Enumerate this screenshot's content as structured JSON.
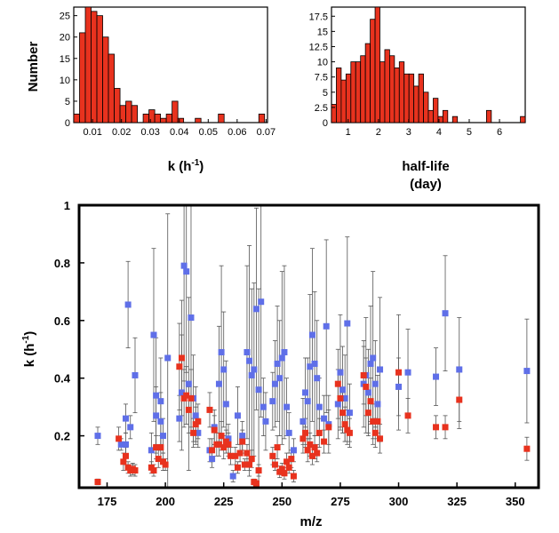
{
  "chart_data": [
    {
      "type": "bar",
      "xlabel": "k (h",
      "xlabel_sup": "-1",
      "xlabel_close": ")",
      "ylabel": "Number",
      "xlim": [
        0.0035,
        0.0705
      ],
      "ylim": [
        0,
        27
      ],
      "xticks": [
        0.01,
        0.02,
        0.03,
        0.04,
        0.05,
        0.06,
        0.07
      ],
      "xtick_labels": [
        "0.01",
        "0.02",
        "0.03",
        "0.04",
        "0.05",
        "0.06",
        "0.07"
      ],
      "yticks": [
        0,
        5,
        10,
        15,
        20,
        25
      ],
      "ytick_labels": [
        "0",
        "5",
        "10",
        "15",
        "20",
        "25"
      ],
      "bin_start": 0.0035,
      "bin_width": 0.002,
      "values": [
        2,
        21,
        27,
        26,
        25,
        20,
        16,
        8,
        4,
        5,
        4,
        0,
        2,
        3,
        2,
        1,
        2,
        5,
        1,
        0,
        0,
        1,
        0,
        0,
        0,
        2,
        0,
        0,
        0,
        0,
        0,
        0,
        2
      ]
    },
    {
      "type": "bar",
      "xlabel": "half-life",
      "xlabel_line2": "(day)",
      "xlim": [
        0.45,
        6.85
      ],
      "ylim": [
        0,
        19
      ],
      "xticks": [
        1,
        2,
        3,
        4,
        5,
        6
      ],
      "xtick_labels": [
        "1",
        "2",
        "3",
        "4",
        "5",
        "6"
      ],
      "yticks": [
        0,
        2.5,
        5,
        7.5,
        10,
        12.5,
        15,
        17.5
      ],
      "ytick_labels": [
        "0",
        "2.5",
        "5",
        "7.5",
        "10",
        "12.5",
        "15",
        "17.5"
      ],
      "bin_start": 0.45,
      "bin_width": 0.16,
      "values": [
        3,
        9,
        7,
        8,
        10,
        10,
        11,
        13,
        17,
        19,
        10,
        12,
        11,
        9,
        10,
        8,
        8,
        6,
        8,
        5,
        2,
        4,
        1,
        2,
        0,
        1,
        0,
        0,
        0,
        0,
        0,
        0,
        2,
        0,
        0,
        0,
        0,
        0,
        0,
        1
      ]
    },
    {
      "type": "scatter",
      "xlabel": "m/z",
      "ylabel": "k (h",
      "ylabel_sup": "-1",
      "ylabel_close": ")",
      "xlim": [
        163,
        360
      ],
      "ylim": [
        0.02,
        1.0
      ],
      "xticks": [
        175,
        200,
        225,
        250,
        275,
        300,
        325,
        350
      ],
      "xtick_labels": [
        "175",
        "200",
        "225",
        "250",
        "275",
        "300",
        "325",
        "350"
      ],
      "yticks": [
        0.2,
        0.4,
        0.6,
        0.8,
        1.0
      ],
      "ytick_labels": [
        "0.2",
        "0.4",
        "0.6",
        "0.8",
        "1"
      ],
      "series": [
        {
          "color": "#5f6fe8",
          "points": [
            [
              171,
              0.2,
              0.03
            ],
            [
              181,
              0.17,
              0.02
            ],
            [
              183,
              0.17,
              0.04
            ],
            [
              183,
              0.26,
              0.05
            ],
            [
              184,
              0.655,
              0.15
            ],
            [
              185,
              0.23,
              0.04
            ],
            [
              187,
              0.41,
              0.13
            ],
            [
              194,
              0.15,
              0.06
            ],
            [
              195,
              0.55,
              0.3
            ],
            [
              196,
              0.34,
              0.2
            ],
            [
              196,
              0.27,
              0.1
            ],
            [
              198,
              0.32,
              0.15
            ],
            [
              198,
              0.25,
              0.1
            ],
            [
              199,
              0.2,
              0.06
            ],
            [
              201,
              0.47,
              0.5
            ],
            [
              206,
              0.26,
              0.08
            ],
            [
              207,
              0.35,
              0.2
            ],
            [
              208,
              0.79,
              0.4
            ],
            [
              209,
              0.77,
              0.35
            ],
            [
              210,
              0.38,
              0.3
            ],
            [
              211,
              0.61,
              0.4
            ],
            [
              212,
              0.33,
              0.15
            ],
            [
              213,
              0.27,
              0.1
            ],
            [
              214,
              0.21,
              0.05
            ],
            [
              219,
              0.15,
              0.04
            ],
            [
              220,
              0.12,
              0.03
            ],
            [
              221,
              0.23,
              0.06
            ],
            [
              223,
              0.38,
              0.2
            ],
            [
              224,
              0.49,
              0.3
            ],
            [
              225,
              0.43,
              0.2
            ],
            [
              226,
              0.31,
              0.15
            ],
            [
              227,
              0.19,
              0.05
            ],
            [
              229,
              0.06,
              0.02
            ],
            [
              231,
              0.27,
              0.1
            ],
            [
              233,
              0.2,
              0.05
            ],
            [
              235,
              0.49,
              0.3
            ],
            [
              236,
              0.46,
              0.4
            ],
            [
              237,
              0.41,
              0.3
            ],
            [
              238,
              0.43,
              0.3
            ],
            [
              239,
              0.64,
              0.35
            ],
            [
              240,
              0.36,
              0.35
            ],
            [
              241,
              0.665,
              0.4
            ],
            [
              242,
              0.3,
              0.1
            ],
            [
              243,
              0.25,
              0.1
            ],
            [
              246,
              0.32,
              0.1
            ],
            [
              247,
              0.38,
              0.15
            ],
            [
              248,
              0.45,
              0.2
            ],
            [
              249,
              0.4,
              0.2
            ],
            [
              250,
              0.47,
              0.3
            ],
            [
              251,
              0.49,
              0.3
            ],
            [
              252,
              0.3,
              0.1
            ],
            [
              253,
              0.21,
              0.07
            ],
            [
              255,
              0.15,
              0.04
            ],
            [
              259,
              0.25,
              0.08
            ],
            [
              260,
              0.35,
              0.12
            ],
            [
              261,
              0.32,
              0.15
            ],
            [
              262,
              0.44,
              0.25
            ],
            [
              263,
              0.55,
              0.3
            ],
            [
              264,
              0.45,
              0.25
            ],
            [
              265,
              0.4,
              0.2
            ],
            [
              266,
              0.3,
              0.1
            ],
            [
              268,
              0.26,
              0.08
            ],
            [
              269,
              0.58,
              0.3
            ],
            [
              270,
              0.24,
              0.1
            ],
            [
              274,
              0.31,
              0.12
            ],
            [
              275,
              0.42,
              0.2
            ],
            [
              276,
              0.36,
              0.15
            ],
            [
              277,
              0.33,
              0.15
            ],
            [
              278,
              0.59,
              0.3
            ],
            [
              279,
              0.28,
              0.1
            ],
            [
              285,
              0.38,
              0.15
            ],
            [
              286,
              0.41,
              0.2
            ],
            [
              287,
              0.35,
              0.15
            ],
            [
              288,
              0.45,
              0.2
            ],
            [
              289,
              0.47,
              0.3
            ],
            [
              290,
              0.38,
              0.15
            ],
            [
              291,
              0.31,
              0.1
            ],
            [
              292,
              0.43,
              0.25
            ],
            [
              300,
              0.37,
              0.1
            ],
            [
              304,
              0.42,
              0.15
            ],
            [
              316,
              0.405,
              0.1
            ],
            [
              320,
              0.625,
              0.2
            ],
            [
              326,
              0.43,
              0.18
            ],
            [
              355,
              0.425,
              0.18
            ]
          ]
        },
        {
          "color": "#e8321e",
          "points": [
            [
              171,
              0.04,
              0.01
            ],
            [
              180,
              0.19,
              0.04
            ],
            [
              182,
              0.11,
              0.03
            ],
            [
              183,
              0.13,
              0.03
            ],
            [
              184,
              0.09,
              0.02
            ],
            [
              185,
              0.08,
              0.02
            ],
            [
              186,
              0.085,
              0.02
            ],
            [
              187,
              0.08,
              0.02
            ],
            [
              194,
              0.09,
              0.02
            ],
            [
              195,
              0.08,
              0.02
            ],
            [
              196,
              0.16,
              0.04
            ],
            [
              197,
              0.12,
              0.03
            ],
            [
              198,
              0.16,
              0.04
            ],
            [
              199,
              0.11,
              0.03
            ],
            [
              200,
              0.1,
              0.02
            ],
            [
              206,
              0.44,
              0.15
            ],
            [
              207,
              0.47,
              0.2
            ],
            [
              208,
              0.33,
              0.1
            ],
            [
              209,
              0.34,
              0.1
            ],
            [
              210,
              0.29,
              0.08
            ],
            [
              211,
              0.33,
              0.1
            ],
            [
              212,
              0.21,
              0.05
            ],
            [
              213,
              0.24,
              0.06
            ],
            [
              214,
              0.25,
              0.06
            ],
            [
              219,
              0.29,
              0.06
            ],
            [
              220,
              0.15,
              0.04
            ],
            [
              221,
              0.22,
              0.05
            ],
            [
              222,
              0.17,
              0.04
            ],
            [
              223,
              0.17,
              0.04
            ],
            [
              224,
              0.2,
              0.05
            ],
            [
              225,
              0.16,
              0.04
            ],
            [
              226,
              0.18,
              0.04
            ],
            [
              227,
              0.17,
              0.04
            ],
            [
              228,
              0.13,
              0.03
            ],
            [
              230,
              0.13,
              0.03
            ],
            [
              231,
              0.09,
              0.02
            ],
            [
              232,
              0.14,
              0.03
            ],
            [
              233,
              0.18,
              0.04
            ],
            [
              234,
              0.1,
              0.02
            ],
            [
              235,
              0.14,
              0.03
            ],
            [
              236,
              0.1,
              0.02
            ],
            [
              237,
              0.12,
              0.03
            ],
            [
              238,
              0.04,
              0.01
            ],
            [
              239,
              0.035,
              0.01
            ],
            [
              240,
              0.08,
              0.02
            ],
            [
              246,
              0.13,
              0.03
            ],
            [
              247,
              0.1,
              0.02
            ],
            [
              248,
              0.16,
              0.04
            ],
            [
              249,
              0.075,
              0.02
            ],
            [
              250,
              0.085,
              0.02
            ],
            [
              251,
              0.07,
              0.02
            ],
            [
              252,
              0.11,
              0.03
            ],
            [
              253,
              0.09,
              0.02
            ],
            [
              254,
              0.12,
              0.03
            ],
            [
              255,
              0.06,
              0.02
            ],
            [
              259,
              0.19,
              0.05
            ],
            [
              260,
              0.21,
              0.05
            ],
            [
              261,
              0.15,
              0.04
            ],
            [
              262,
              0.17,
              0.04
            ],
            [
              263,
              0.13,
              0.03
            ],
            [
              264,
              0.16,
              0.04
            ],
            [
              265,
              0.14,
              0.03
            ],
            [
              266,
              0.21,
              0.05
            ],
            [
              268,
              0.18,
              0.04
            ],
            [
              270,
              0.23,
              0.06
            ],
            [
              274,
              0.38,
              0.12
            ],
            [
              275,
              0.33,
              0.1
            ],
            [
              276,
              0.28,
              0.07
            ],
            [
              277,
              0.24,
              0.06
            ],
            [
              278,
              0.22,
              0.05
            ],
            [
              279,
              0.21,
              0.05
            ],
            [
              285,
              0.41,
              0.1
            ],
            [
              286,
              0.37,
              0.1
            ],
            [
              287,
              0.28,
              0.07
            ],
            [
              288,
              0.32,
              0.08
            ],
            [
              289,
              0.25,
              0.06
            ],
            [
              290,
              0.21,
              0.05
            ],
            [
              291,
              0.25,
              0.06
            ],
            [
              292,
              0.19,
              0.05
            ],
            [
              300,
              0.42,
              0.2
            ],
            [
              304,
              0.27,
              0.06
            ],
            [
              316,
              0.23,
              0.04
            ],
            [
              320,
              0.23,
              0.04
            ],
            [
              326,
              0.325,
              0.1
            ],
            [
              355,
              0.155,
              0.04
            ]
          ]
        }
      ]
    }
  ]
}
